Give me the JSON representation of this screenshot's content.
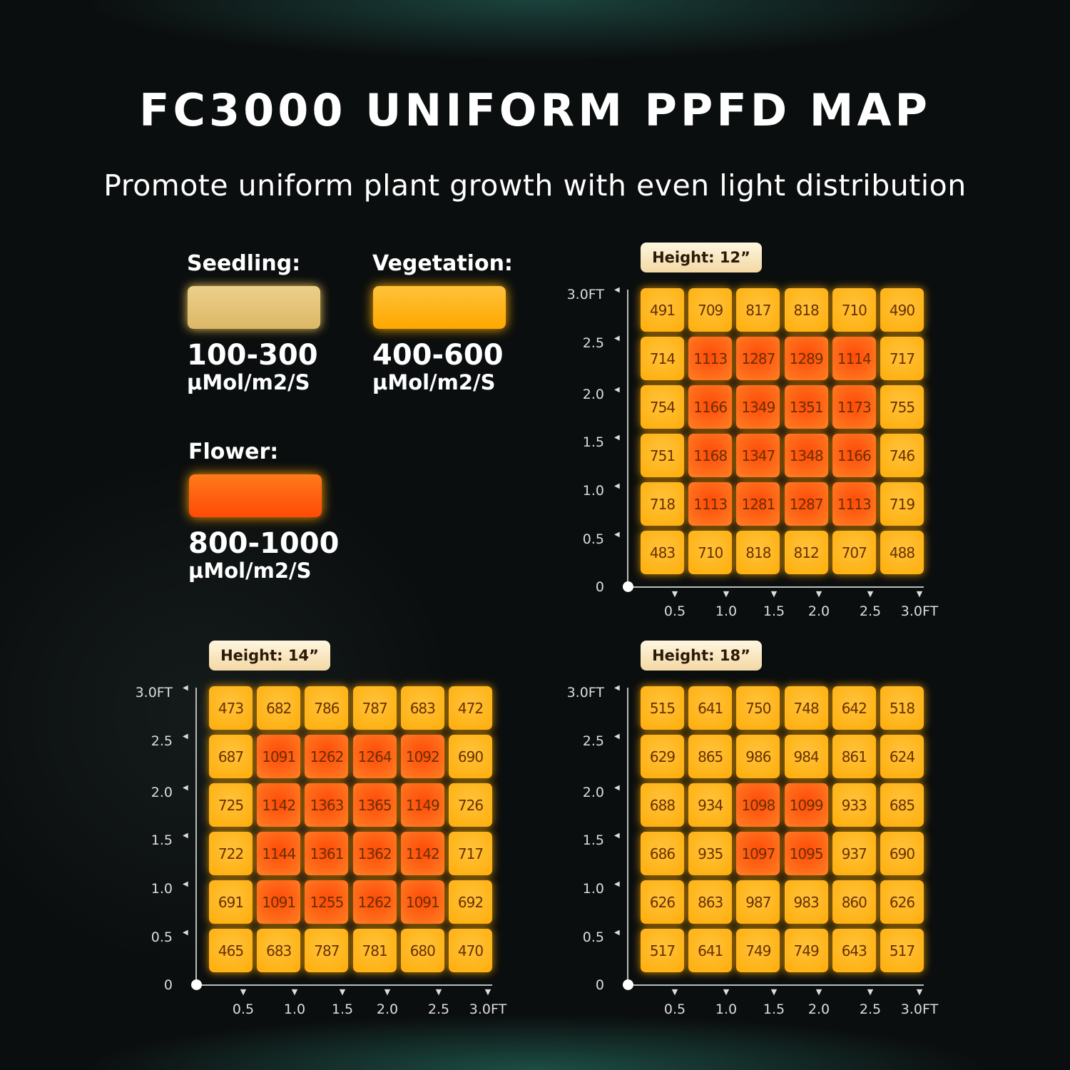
{
  "header": {
    "title": "FC3000 UNIFORM PPFD MAP",
    "subtitle": "Promote uniform plant growth with even light distribution"
  },
  "legend": [
    {
      "label": "Seedling:",
      "range": "100-300",
      "unit": "µMol/m2/S",
      "color": "#e3c171"
    },
    {
      "label": "Vegetation:",
      "range": "400-600",
      "unit": "µMol/m2/S",
      "color": "#ffb20e"
    },
    {
      "label": "Flower:",
      "range": "800-1000",
      "unit": "µMol/m2/S",
      "color": "#ff5a0c"
    }
  ],
  "chart_data": [
    {
      "type": "heatmap",
      "title": "Height: 12”",
      "y_ticks": [
        "3.0FT",
        "2.5",
        "2.0",
        "1.5",
        "1.0",
        "0.5",
        "0"
      ],
      "x_ticks": [
        "0.5",
        "1.0",
        "1.5",
        "2.0",
        "2.5",
        "3.0FT"
      ],
      "values": [
        [
          491,
          709,
          817,
          818,
          710,
          490
        ],
        [
          714,
          1113,
          1287,
          1289,
          1114,
          717
        ],
        [
          754,
          1166,
          1349,
          1351,
          1173,
          755
        ],
        [
          751,
          1168,
          1347,
          1348,
          1166,
          746
        ],
        [
          718,
          1113,
          1281,
          1287,
          1113,
          719
        ],
        [
          483,
          710,
          818,
          812,
          707,
          488
        ]
      ]
    },
    {
      "type": "heatmap",
      "title": "Height: 14”",
      "y_ticks": [
        "3.0FT",
        "2.5",
        "2.0",
        "1.5",
        "1.0",
        "0.5",
        "0"
      ],
      "x_ticks": [
        "0.5",
        "1.0",
        "1.5",
        "2.0",
        "2.5",
        "3.0FT"
      ],
      "values": [
        [
          473,
          682,
          786,
          787,
          683,
          472
        ],
        [
          687,
          1091,
          1262,
          1264,
          1092,
          690
        ],
        [
          725,
          1142,
          1363,
          1365,
          1149,
          726
        ],
        [
          722,
          1144,
          1361,
          1362,
          1142,
          717
        ],
        [
          691,
          1091,
          1255,
          1262,
          1091,
          692
        ],
        [
          465,
          683,
          787,
          781,
          680,
          470
        ]
      ]
    },
    {
      "type": "heatmap",
      "title": "Height: 18”",
      "y_ticks": [
        "3.0FT",
        "2.5",
        "2.0",
        "1.5",
        "1.0",
        "0.5",
        "0"
      ],
      "x_ticks": [
        "0.5",
        "1.0",
        "1.5",
        "2.0",
        "2.5",
        "3.0FT"
      ],
      "values": [
        [
          515,
          641,
          750,
          748,
          642,
          518
        ],
        [
          629,
          865,
          986,
          984,
          861,
          624
        ],
        [
          688,
          934,
          1098,
          1099,
          933,
          685
        ],
        [
          686,
          935,
          1097,
          1095,
          937,
          690
        ],
        [
          626,
          863,
          987,
          983,
          860,
          626
        ],
        [
          517,
          641,
          749,
          749,
          643,
          517
        ]
      ]
    }
  ],
  "colors": {
    "cell": "#ffb41c",
    "cell_high": "#ff5e10"
  }
}
